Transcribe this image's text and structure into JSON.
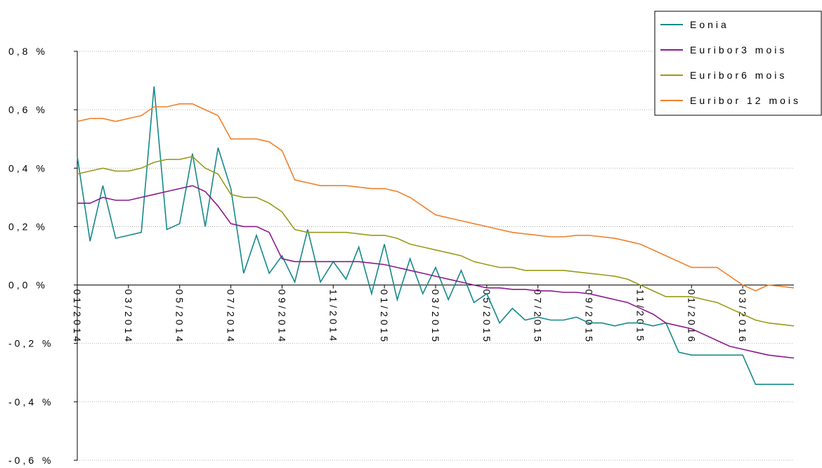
{
  "chart_data": {
    "type": "line",
    "categories": [
      "01/2014",
      null,
      null,
      null,
      "03/2014",
      null,
      null,
      null,
      "05/2014",
      null,
      null,
      null,
      "07/2014",
      null,
      null,
      null,
      "09/2014",
      null,
      null,
      null,
      "11/2014",
      null,
      null,
      null,
      "01/2015",
      null,
      null,
      null,
      "03/2015",
      null,
      null,
      null,
      "05/2015",
      null,
      null,
      null,
      "07/2015",
      null,
      null,
      null,
      "09/2015",
      null,
      null,
      null,
      "11/2015",
      null,
      null,
      null,
      "01/2016",
      null,
      null,
      null,
      "03/2016",
      null,
      null,
      null,
      null
    ],
    "series": [
      {
        "name": "Eonia",
        "color": "#16898a",
        "values": [
          0.44,
          0.15,
          0.34,
          0.16,
          0.17,
          0.18,
          0.68,
          0.19,
          0.21,
          0.45,
          0.2,
          0.47,
          0.33,
          0.04,
          0.17,
          0.04,
          0.1,
          0.01,
          0.19,
          0.01,
          0.08,
          0.02,
          0.13,
          -0.03,
          0.14,
          -0.05,
          0.09,
          -0.03,
          0.06,
          -0.05,
          0.05,
          -0.06,
          -0.03,
          -0.13,
          -0.08,
          -0.12,
          -0.11,
          -0.12,
          -0.12,
          -0.11,
          -0.13,
          -0.13,
          -0.14,
          -0.13,
          -0.13,
          -0.14,
          -0.13,
          -0.23,
          -0.24,
          -0.24,
          -0.24,
          -0.24,
          -0.24,
          -0.34,
          -0.34,
          -0.34,
          -0.34
        ]
      },
      {
        "name": "Euribor3 mois",
        "color": "#8a1b8a",
        "values": [
          0.28,
          0.28,
          0.3,
          0.29,
          0.29,
          0.3,
          0.31,
          0.32,
          0.33,
          0.34,
          0.32,
          0.27,
          0.21,
          0.2,
          0.2,
          0.18,
          0.09,
          0.08,
          0.08,
          0.08,
          0.08,
          0.08,
          0.08,
          0.075,
          0.07,
          0.06,
          0.05,
          0.04,
          0.03,
          0.02,
          0.01,
          0.0,
          -0.01,
          -0.01,
          -0.015,
          -0.015,
          -0.02,
          -0.02,
          -0.025,
          -0.025,
          -0.03,
          -0.04,
          -0.05,
          -0.06,
          -0.08,
          -0.1,
          -0.13,
          -0.14,
          -0.15,
          -0.17,
          -0.19,
          -0.21,
          -0.22,
          -0.23,
          -0.24,
          -0.245,
          -0.25
        ]
      },
      {
        "name": "Euribor6 mois",
        "color": "#9a9a1a",
        "values": [
          0.38,
          0.39,
          0.4,
          0.39,
          0.39,
          0.4,
          0.42,
          0.43,
          0.43,
          0.44,
          0.4,
          0.38,
          0.31,
          0.3,
          0.3,
          0.28,
          0.25,
          0.19,
          0.18,
          0.18,
          0.18,
          0.18,
          0.175,
          0.17,
          0.17,
          0.16,
          0.14,
          0.13,
          0.12,
          0.11,
          0.1,
          0.08,
          0.07,
          0.06,
          0.06,
          0.05,
          0.05,
          0.05,
          0.05,
          0.045,
          0.04,
          0.035,
          0.03,
          0.02,
          0.0,
          -0.02,
          -0.04,
          -0.04,
          -0.04,
          -0.05,
          -0.06,
          -0.08,
          -0.1,
          -0.12,
          -0.13,
          -0.135,
          -0.14
        ]
      },
      {
        "name": "Euribor 12 mois",
        "color": "#f0802a",
        "values": [
          0.56,
          0.57,
          0.57,
          0.56,
          0.57,
          0.58,
          0.61,
          0.61,
          0.62,
          0.62,
          0.6,
          0.58,
          0.5,
          0.5,
          0.5,
          0.49,
          0.46,
          0.36,
          0.35,
          0.34,
          0.34,
          0.34,
          0.335,
          0.33,
          0.33,
          0.32,
          0.3,
          0.27,
          0.24,
          0.23,
          0.22,
          0.21,
          0.2,
          0.19,
          0.18,
          0.175,
          0.17,
          0.165,
          0.165,
          0.17,
          0.17,
          0.165,
          0.16,
          0.15,
          0.14,
          0.12,
          0.1,
          0.08,
          0.06,
          0.06,
          0.06,
          0.03,
          0.0,
          -0.02,
          0.0,
          -0.005,
          -0.01
        ]
      }
    ],
    "ylim": [
      -0.6,
      0.8
    ],
    "yticks": [
      {
        "value": -0.6,
        "label": "-0,6 %"
      },
      {
        "value": -0.4,
        "label": "-0,4 %"
      },
      {
        "value": -0.2,
        "label": "-0,2 %"
      },
      {
        "value": 0,
        "label": "0,0 %"
      },
      {
        "value": 0.2,
        "label": "0,2 %"
      },
      {
        "value": 0.4,
        "label": "0,4 %"
      },
      {
        "value": 0.6,
        "label": "0,6 %"
      },
      {
        "value": 0.8,
        "label": "0,8 %"
      }
    ],
    "grid": true,
    "legend": "top-right"
  }
}
